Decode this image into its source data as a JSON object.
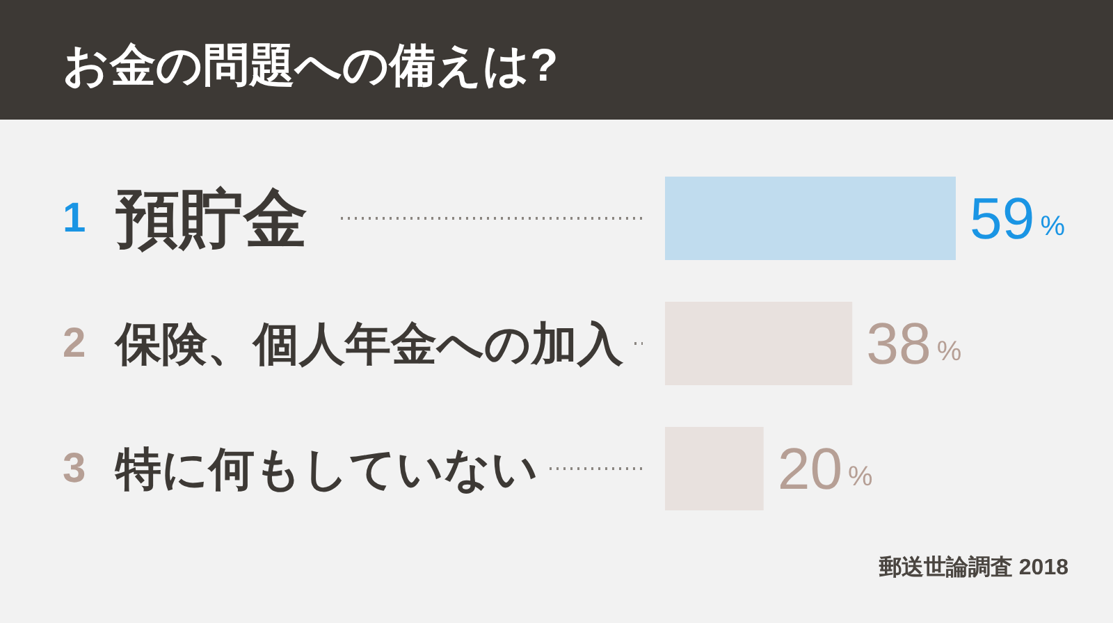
{
  "chart_data": {
    "type": "bar",
    "orientation": "horizontal",
    "title": "お金の問題への備えは?",
    "categories": [
      "1 預貯金",
      "2 保険、個人年金への加入",
      "3 特に何もしていない"
    ],
    "values": [
      59,
      38,
      20
    ],
    "colors": [
      "#c0dcee",
      "#e8e1de",
      "#e8e1de"
    ],
    "value_labels": [
      "59%",
      "38%",
      "20%"
    ],
    "tick_labels": "y",
    "annotations": [
      "郵送世論調査 2018"
    ]
  }
}
